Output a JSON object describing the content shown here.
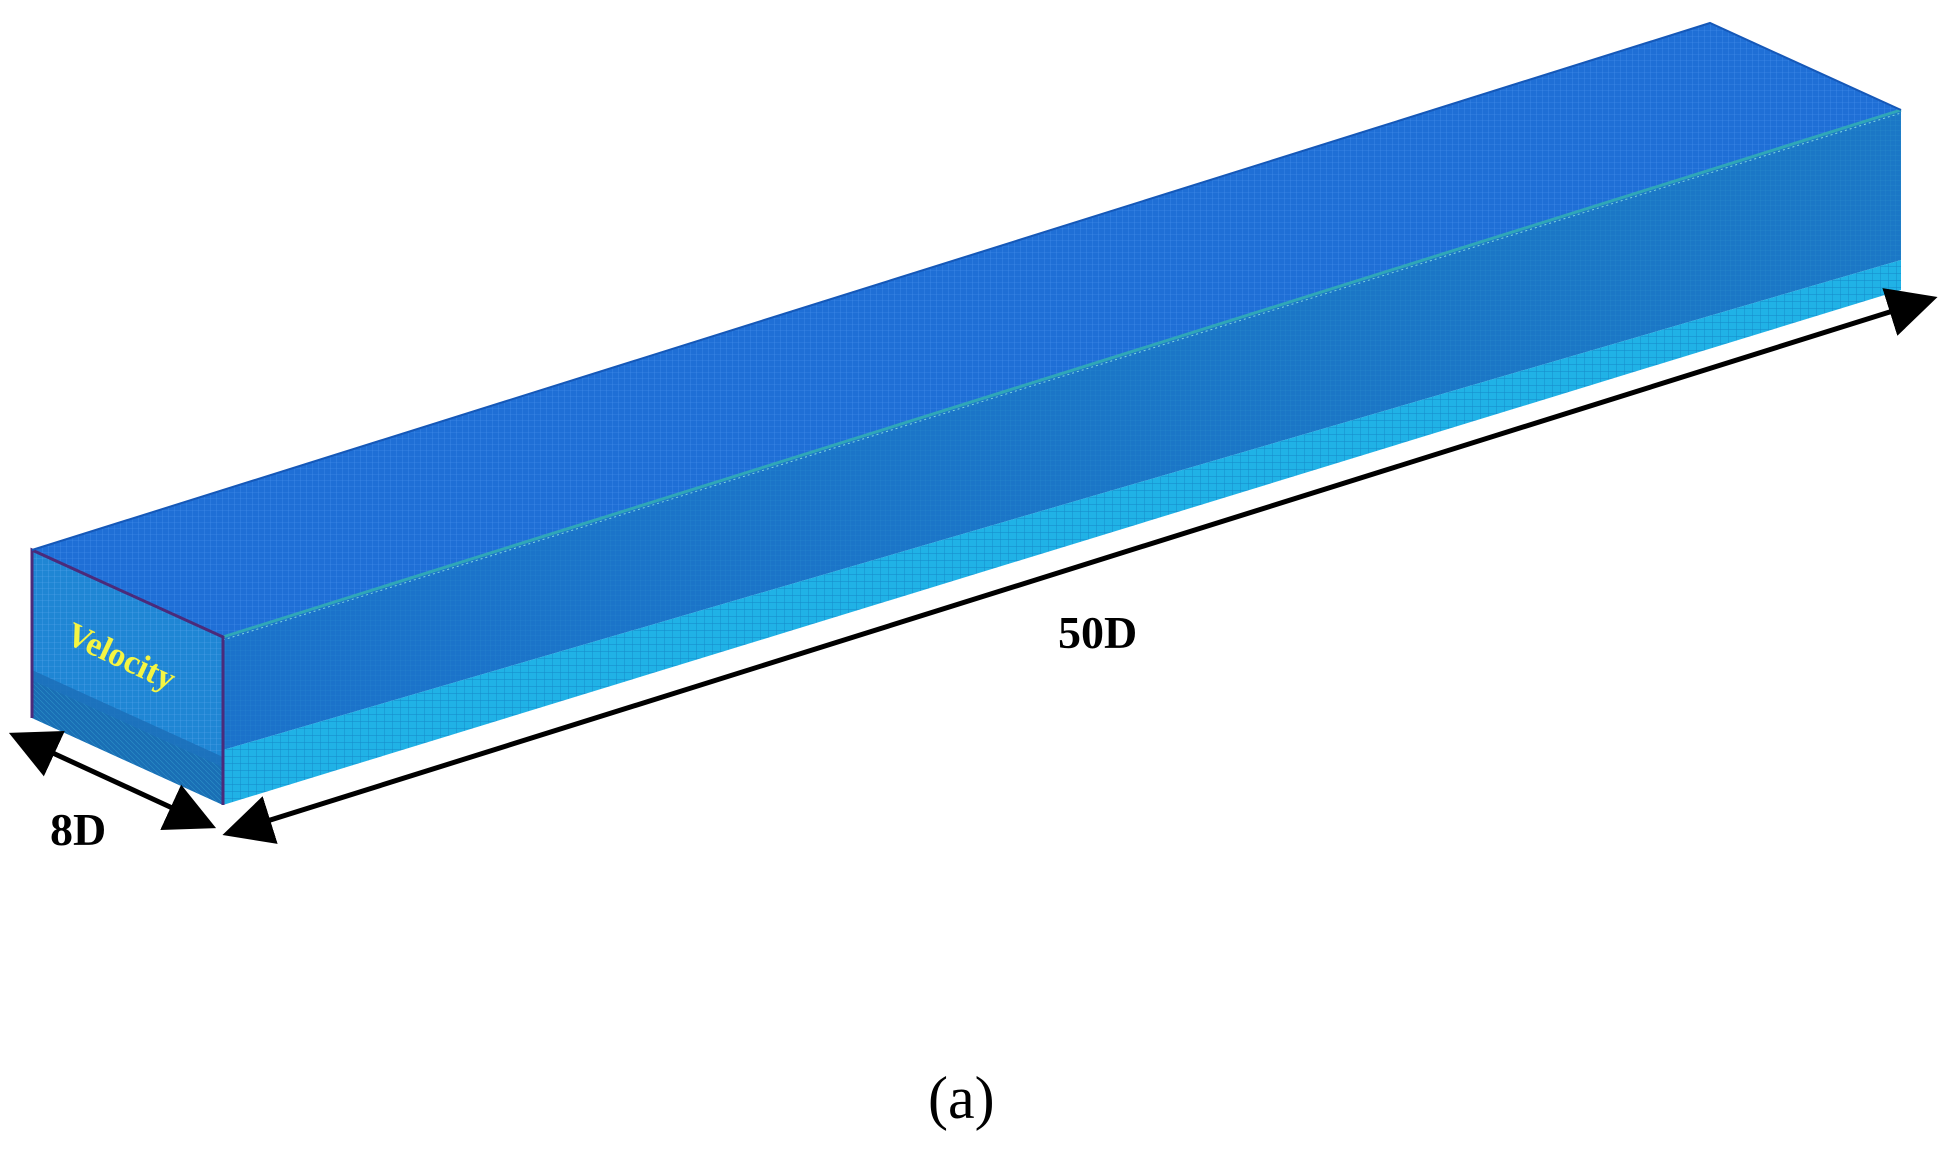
{
  "figure": {
    "inlet_label": "Velocity",
    "length_label": "50D",
    "width_label": "8D",
    "caption": "(a)"
  },
  "colors": {
    "mesh_top": "#1f6fd6",
    "mesh_side": "#1c76cf",
    "mesh_lower": "#1fb3e6",
    "mesh_inlet": "#1f86d4",
    "mesh_line_dark": "#0b4fa6",
    "edge_purple": "#4b2a7a",
    "inlet_text": "#f5f542",
    "arrow": "#000000"
  },
  "icons": {
    "length_arrow": "double-headed-arrow",
    "width_arrow": "double-headed-arrow"
  }
}
